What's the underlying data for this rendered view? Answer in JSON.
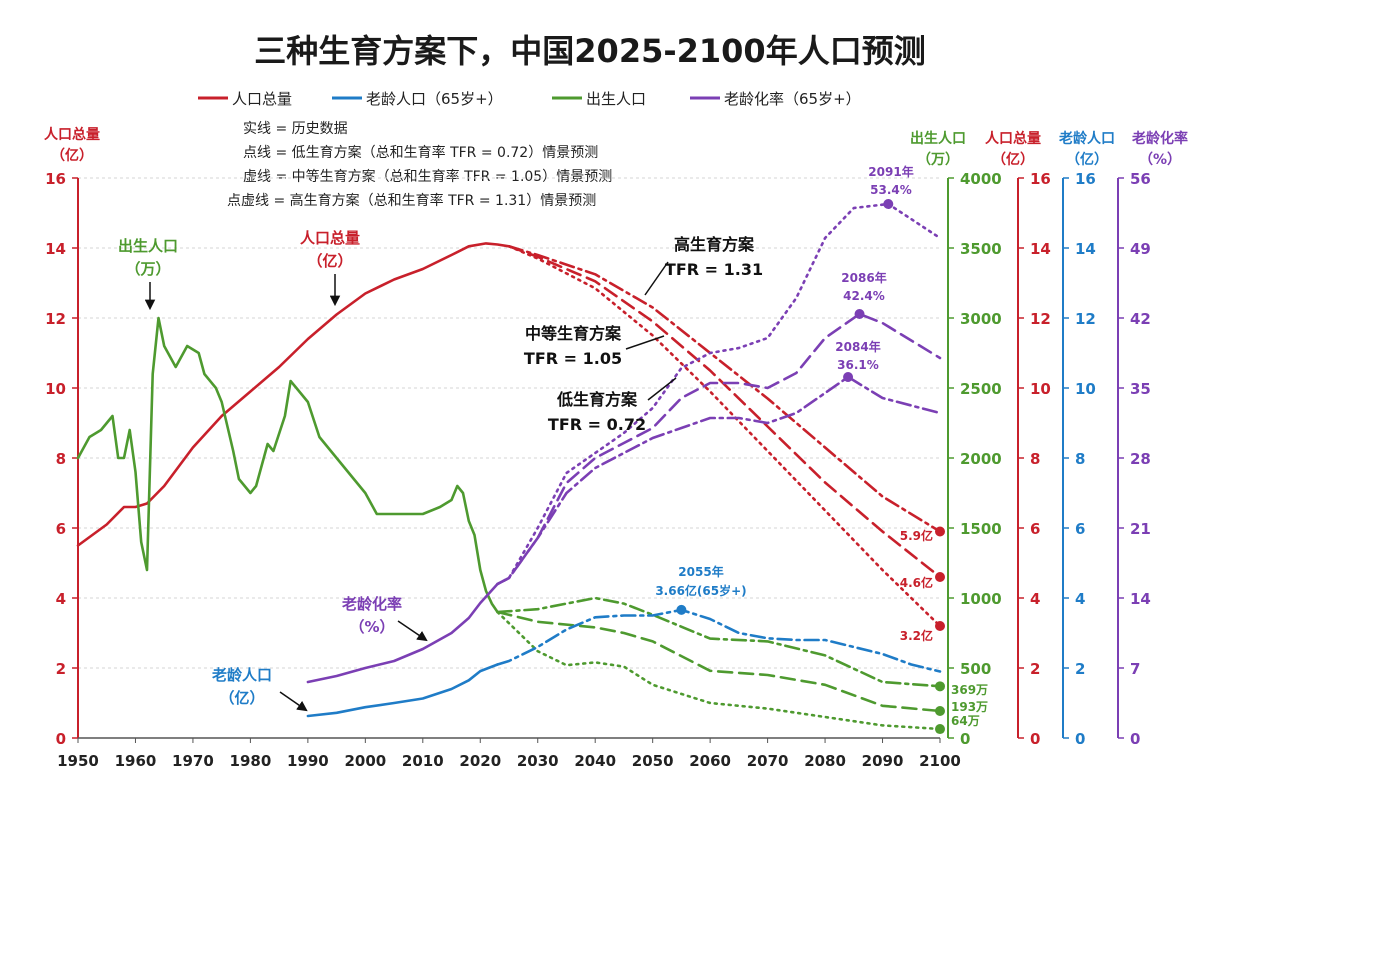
{
  "chart_data": {
    "type": "line",
    "title": "三种生育方案下，中国2025-2100年人口预测",
    "legend": [
      {
        "label": "人口总量",
        "color": "#c8202b"
      },
      {
        "label": "老龄人口（65岁+）",
        "color": "#1f7cc7"
      },
      {
        "label": "出生人口",
        "color": "#4e9a2f"
      },
      {
        "label": "老龄化率（65岁+）",
        "color": "#7b3fb4"
      }
    ],
    "notes": [
      "实线 = 历史数据",
      "点线 = 低生育方案（总和生育率 TFR = 0.72）情景预测",
      "虚线 = 中等生育方案（总和生育率 TFR = 1.05）情景预测",
      "点虚线 = 高生育方案（总和生育率 TFR = 1.31）情景预测"
    ],
    "x_ticks": [
      1950,
      1960,
      1970,
      1980,
      1990,
      2000,
      2010,
      2020,
      2030,
      2040,
      2050,
      2060,
      2070,
      2080,
      2090,
      2100
    ],
    "axes": {
      "left": {
        "title": "人口总量",
        "unit": "（亿）",
        "ticks": [
          0,
          2,
          4,
          6,
          8,
          10,
          12,
          14,
          16
        ],
        "range": [
          0,
          16
        ]
      },
      "right_birth": {
        "title": "出生人口",
        "unit": "（万）",
        "ticks": [
          0,
          500,
          1000,
          1500,
          2000,
          2500,
          3000,
          3500,
          4000
        ],
        "range": [
          0,
          4000
        ]
      },
      "right_pop": {
        "title": "人口总量",
        "unit": "（亿）",
        "ticks": [
          0,
          2,
          4,
          6,
          8,
          10,
          12,
          14,
          16
        ],
        "range": [
          0,
          16
        ]
      },
      "right_old": {
        "title": "老龄人口",
        "unit": "（亿）",
        "ticks": [
          0,
          2,
          4,
          6,
          8,
          10,
          12,
          14,
          16
        ],
        "range": [
          0,
          16
        ]
      },
      "right_rate": {
        "title": "老龄化率",
        "unit": "（%）",
        "ticks": [
          0,
          7,
          14,
          21,
          28,
          35,
          42,
          49,
          56
        ],
        "range": [
          0,
          56
        ]
      }
    },
    "series": [
      {
        "name": "人口总量 历史",
        "axis": "pop",
        "color": "#c8202b",
        "style": "solid",
        "points": [
          [
            1950,
            5.5
          ],
          [
            1955,
            6.1
          ],
          [
            1958,
            6.6
          ],
          [
            1960,
            6.6
          ],
          [
            1962,
            6.7
          ],
          [
            1965,
            7.2
          ],
          [
            1970,
            8.3
          ],
          [
            1975,
            9.2
          ],
          [
            1980,
            9.9
          ],
          [
            1985,
            10.6
          ],
          [
            1990,
            11.4
          ],
          [
            1995,
            12.1
          ],
          [
            2000,
            12.7
          ],
          [
            2005,
            13.1
          ],
          [
            2010,
            13.4
          ],
          [
            2015,
            13.8
          ],
          [
            2018,
            14.05
          ],
          [
            2021,
            14.13
          ],
          [
            2023,
            14.1
          ],
          [
            2025,
            14.05
          ]
        ]
      },
      {
        "name": "人口总量 高生育",
        "axis": "pop",
        "color": "#c8202b",
        "style": "dashdot",
        "points": [
          [
            2025,
            14.05
          ],
          [
            2030,
            13.8
          ],
          [
            2040,
            13.25
          ],
          [
            2050,
            12.3
          ],
          [
            2060,
            11.0
          ],
          [
            2070,
            9.7
          ],
          [
            2080,
            8.3
          ],
          [
            2090,
            6.9
          ],
          [
            2100,
            5.9
          ]
        ]
      },
      {
        "name": "人口总量 中等生育",
        "axis": "pop",
        "color": "#c8202b",
        "style": "dashed",
        "points": [
          [
            2025,
            14.05
          ],
          [
            2030,
            13.75
          ],
          [
            2040,
            13.05
          ],
          [
            2050,
            11.9
          ],
          [
            2060,
            10.5
          ],
          [
            2070,
            8.9
          ],
          [
            2080,
            7.3
          ],
          [
            2090,
            5.9
          ],
          [
            2100,
            4.6
          ]
        ]
      },
      {
        "name": "人口总量 低生育",
        "axis": "pop",
        "color": "#c8202b",
        "style": "dotted",
        "points": [
          [
            2025,
            14.05
          ],
          [
            2030,
            13.7
          ],
          [
            2040,
            12.85
          ],
          [
            2050,
            11.5
          ],
          [
            2060,
            9.9
          ],
          [
            2070,
            8.2
          ],
          [
            2080,
            6.5
          ],
          [
            2090,
            4.8
          ],
          [
            2100,
            3.2
          ]
        ]
      },
      {
        "name": "出生人口 历史",
        "axis": "birth",
        "color": "#4e9a2f",
        "style": "solid",
        "points": [
          [
            1950,
            2000
          ],
          [
            1952,
            2150
          ],
          [
            1954,
            2200
          ],
          [
            1956,
            2300
          ],
          [
            1957,
            2000
          ],
          [
            1958,
            2000
          ],
          [
            1959,
            2200
          ],
          [
            1960,
            1900
          ],
          [
            1961,
            1400
          ],
          [
            1962,
            1200
          ],
          [
            1963,
            2600
          ],
          [
            1964,
            3000
          ],
          [
            1965,
            2800
          ],
          [
            1967,
            2650
          ],
          [
            1969,
            2800
          ],
          [
            1971,
            2750
          ],
          [
            1972,
            2600
          ],
          [
            1974,
            2500
          ],
          [
            1975,
            2400
          ],
          [
            1977,
            2050
          ],
          [
            1978,
            1850
          ],
          [
            1980,
            1750
          ],
          [
            1981,
            1800
          ],
          [
            1983,
            2100
          ],
          [
            1984,
            2050
          ],
          [
            1986,
            2300
          ],
          [
            1987,
            2550
          ],
          [
            1988,
            2500
          ],
          [
            1990,
            2400
          ],
          [
            1992,
            2150
          ],
          [
            1995,
            2000
          ],
          [
            1998,
            1850
          ],
          [
            2000,
            1750
          ],
          [
            2002,
            1600
          ],
          [
            2004,
            1600
          ],
          [
            2007,
            1600
          ],
          [
            2010,
            1600
          ],
          [
            2013,
            1650
          ],
          [
            2015,
            1700
          ],
          [
            2016,
            1800
          ],
          [
            2017,
            1750
          ],
          [
            2018,
            1550
          ],
          [
            2019,
            1450
          ],
          [
            2020,
            1200
          ],
          [
            2021,
            1050
          ],
          [
            2022,
            960
          ],
          [
            2023,
            900
          ]
        ]
      },
      {
        "name": "出生人口 高生育",
        "axis": "birth",
        "color": "#4e9a2f",
        "style": "dashdot",
        "points": [
          [
            2023,
            900
          ],
          [
            2030,
            920
          ],
          [
            2040,
            1000
          ],
          [
            2045,
            960
          ],
          [
            2050,
            880
          ],
          [
            2060,
            710
          ],
          [
            2070,
            690
          ],
          [
            2080,
            590
          ],
          [
            2090,
            400
          ],
          [
            2100,
            369
          ]
        ]
      },
      {
        "name": "出生人口 中等生育",
        "axis": "birth",
        "color": "#4e9a2f",
        "style": "dashed",
        "points": [
          [
            2023,
            900
          ],
          [
            2030,
            830
          ],
          [
            2040,
            790
          ],
          [
            2045,
            750
          ],
          [
            2050,
            690
          ],
          [
            2060,
            480
          ],
          [
            2070,
            450
          ],
          [
            2080,
            380
          ],
          [
            2090,
            230
          ],
          [
            2100,
            193
          ]
        ]
      },
      {
        "name": "出生人口 低生育",
        "axis": "birth",
        "color": "#4e9a2f",
        "style": "dotted",
        "points": [
          [
            2023,
            900
          ],
          [
            2030,
            620
          ],
          [
            2035,
            520
          ],
          [
            2040,
            540
          ],
          [
            2045,
            510
          ],
          [
            2050,
            380
          ],
          [
            2060,
            250
          ],
          [
            2070,
            210
          ],
          [
            2080,
            150
          ],
          [
            2090,
            90
          ],
          [
            2100,
            64
          ]
        ]
      },
      {
        "name": "老龄人口 历史",
        "axis": "old",
        "color": "#1f7cc7",
        "style": "solid",
        "points": [
          [
            1990,
            0.63
          ],
          [
            1995,
            0.72
          ],
          [
            2000,
            0.88
          ],
          [
            2005,
            1.0
          ],
          [
            2010,
            1.13
          ],
          [
            2015,
            1.4
          ],
          [
            2018,
            1.65
          ],
          [
            2020,
            1.91
          ],
          [
            2023,
            2.1
          ]
        ]
      },
      {
        "name": "老龄人口 预测",
        "axis": "old",
        "color": "#1f7cc7",
        "style": "dashdot",
        "points": [
          [
            2023,
            2.1
          ],
          [
            2025,
            2.2
          ],
          [
            2030,
            2.6
          ],
          [
            2035,
            3.1
          ],
          [
            2040,
            3.45
          ],
          [
            2045,
            3.5
          ],
          [
            2050,
            3.5
          ],
          [
            2055,
            3.66
          ],
          [
            2060,
            3.4
          ],
          [
            2065,
            3.0
          ],
          [
            2070,
            2.85
          ],
          [
            2075,
            2.8
          ],
          [
            2080,
            2.8
          ],
          [
            2085,
            2.6
          ],
          [
            2090,
            2.4
          ],
          [
            2095,
            2.1
          ],
          [
            2100,
            1.9
          ]
        ]
      },
      {
        "name": "老龄化率 历史",
        "axis": "rate",
        "color": "#7b3fb4",
        "style": "solid",
        "points": [
          [
            1990,
            5.6
          ],
          [
            1995,
            6.2
          ],
          [
            2000,
            7.0
          ],
          [
            2005,
            7.7
          ],
          [
            2010,
            8.9
          ],
          [
            2015,
            10.5
          ],
          [
            2018,
            12.0
          ],
          [
            2020,
            13.5
          ],
          [
            2023,
            15.4
          ]
        ]
      },
      {
        "name": "老龄化率 中等生育",
        "axis": "rate",
        "color": "#7b3fb4",
        "style": "dashed",
        "points": [
          [
            2023,
            15.4
          ],
          [
            2025,
            16.0
          ],
          [
            2030,
            20.0
          ],
          [
            2035,
            25.5
          ],
          [
            2040,
            28.0
          ],
          [
            2045,
            29.5
          ],
          [
            2050,
            31.0
          ],
          [
            2055,
            34.0
          ],
          [
            2060,
            35.5
          ],
          [
            2065,
            35.5
          ],
          [
            2070,
            35.0
          ],
          [
            2075,
            36.5
          ],
          [
            2080,
            40.0
          ],
          [
            2086,
            42.4
          ],
          [
            2090,
            41.5
          ],
          [
            2100,
            38.0
          ]
        ]
      },
      {
        "name": "老龄化率 低生育",
        "axis": "rate",
        "color": "#7b3fb4",
        "style": "dotted",
        "points": [
          [
            2023,
            15.4
          ],
          [
            2025,
            16.0
          ],
          [
            2030,
            21.0
          ],
          [
            2035,
            26.5
          ],
          [
            2040,
            28.5
          ],
          [
            2045,
            30.5
          ],
          [
            2050,
            33.0
          ],
          [
            2055,
            37.0
          ],
          [
            2060,
            38.5
          ],
          [
            2065,
            39.0
          ],
          [
            2070,
            40.0
          ],
          [
            2075,
            44.0
          ],
          [
            2080,
            50.0
          ],
          [
            2085,
            53.0
          ],
          [
            2091,
            53.4
          ],
          [
            2100,
            50.0
          ]
        ]
      },
      {
        "name": "老龄化率 高生育",
        "axis": "rate",
        "color": "#7b3fb4",
        "style": "dashdot",
        "points": [
          [
            2023,
            15.4
          ],
          [
            2025,
            16.0
          ],
          [
            2030,
            20.0
          ],
          [
            2035,
            24.5
          ],
          [
            2040,
            27.0
          ],
          [
            2045,
            28.5
          ],
          [
            2050,
            30.0
          ],
          [
            2055,
            31.0
          ],
          [
            2060,
            32.0
          ],
          [
            2065,
            32.0
          ],
          [
            2070,
            31.5
          ],
          [
            2075,
            32.5
          ],
          [
            2080,
            34.5
          ],
          [
            2084,
            36.1
          ],
          [
            2090,
            34.0
          ],
          [
            2100,
            32.5
          ]
        ]
      }
    ],
    "annotations": {
      "births_label": {
        "text": "出生人口",
        "unit": "（万）"
      },
      "pop_label": {
        "text": "人口总量",
        "unit": "（亿）"
      },
      "old_label": {
        "text": "老龄人口",
        "unit": "（亿）"
      },
      "rate_label": {
        "text": "老龄化率",
        "unit": "（%）"
      },
      "high_plan": {
        "name": "高生育方案",
        "tfr": "TFR = 1.31"
      },
      "mid_plan": {
        "name": "中等生育方案",
        "tfr": "TFR = 1.05"
      },
      "low_plan": {
        "name": "低生育方案",
        "tfr": "TFR = 0.72"
      },
      "peak_2091": {
        "year": "2091年",
        "value": "53.4%"
      },
      "peak_2086": {
        "year": "2086年",
        "value": "42.4%"
      },
      "peak_2084": {
        "year": "2084年",
        "value": "36.1%"
      },
      "peak_2055": {
        "year": "2055年",
        "value": "3.66亿(65岁+)"
      },
      "end_pop_high": "5.9亿",
      "end_pop_mid": "4.6亿",
      "end_pop_low": "3.2亿",
      "end_birth_high": "369万",
      "end_birth_mid": "193万",
      "end_birth_low": "64万"
    },
    "end_markers": [
      {
        "axis": "pop",
        "year": 2100,
        "value": 5.9,
        "color": "#c8202b"
      },
      {
        "axis": "pop",
        "year": 2100,
        "value": 4.6,
        "color": "#c8202b"
      },
      {
        "axis": "pop",
        "year": 2100,
        "value": 3.2,
        "color": "#c8202b"
      },
      {
        "axis": "birth",
        "year": 2100,
        "value": 369,
        "color": "#4e9a2f"
      },
      {
        "axis": "birth",
        "year": 2100,
        "value": 193,
        "color": "#4e9a2f"
      },
      {
        "axis": "birth",
        "year": 2100,
        "value": 64,
        "color": "#4e9a2f"
      },
      {
        "axis": "old",
        "year": 2055,
        "value": 3.66,
        "color": "#1f7cc7"
      },
      {
        "axis": "rate",
        "year": 2091,
        "value": 53.4,
        "color": "#7b3fb4"
      },
      {
        "axis": "rate",
        "year": 2086,
        "value": 42.4,
        "color": "#7b3fb4"
      },
      {
        "axis": "rate",
        "year": 2084,
        "value": 36.1,
        "color": "#7b3fb4"
      }
    ]
  }
}
